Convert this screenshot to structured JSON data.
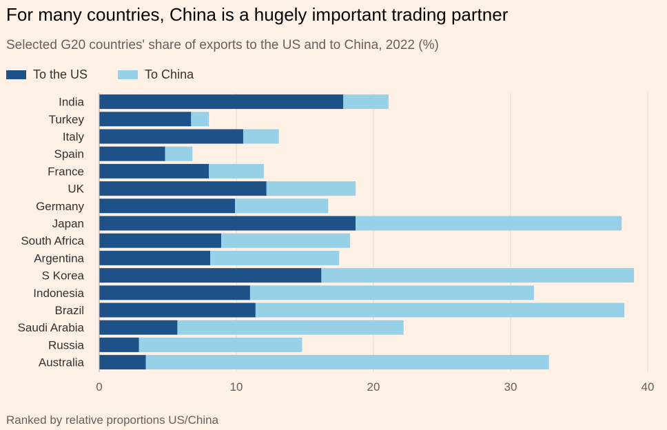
{
  "chart_data": {
    "type": "bar",
    "orientation": "horizontal",
    "stacked": true,
    "title": "For many countries, China is a hugely important trading partner",
    "subtitle": "Selected G20 countries' share of exports to the US and to China, 2022 (%)",
    "footnote": "Ranked by relative proportions US/China",
    "categories": [
      "India",
      "Turkey",
      "Italy",
      "Spain",
      "France",
      "UK",
      "Germany",
      "Japan",
      "South Africa",
      "Argentina",
      "S Korea",
      "Indonesia",
      "Brazil",
      "Saudi Arabia",
      "Russia",
      "Australia"
    ],
    "series": [
      {
        "name": "To the US",
        "color": "#1f5189",
        "values": [
          17.8,
          6.7,
          10.5,
          4.8,
          8.0,
          12.2,
          9.9,
          18.7,
          8.9,
          8.1,
          16.2,
          11.0,
          11.4,
          5.7,
          2.9,
          3.4
        ]
      },
      {
        "name": "To China",
        "color": "#96d1e8",
        "values": [
          3.3,
          1.3,
          2.6,
          2.0,
          4.0,
          6.5,
          6.8,
          19.4,
          9.4,
          9.4,
          22.8,
          20.7,
          26.9,
          16.5,
          11.9,
          29.4
        ]
      }
    ],
    "xlim": [
      0,
      40
    ],
    "xticks": [
      "0",
      "10",
      "20",
      "30",
      "40"
    ],
    "xtick_values": [
      0,
      10,
      20,
      30,
      40
    ],
    "grid": true,
    "legend_position": "top-left"
  }
}
